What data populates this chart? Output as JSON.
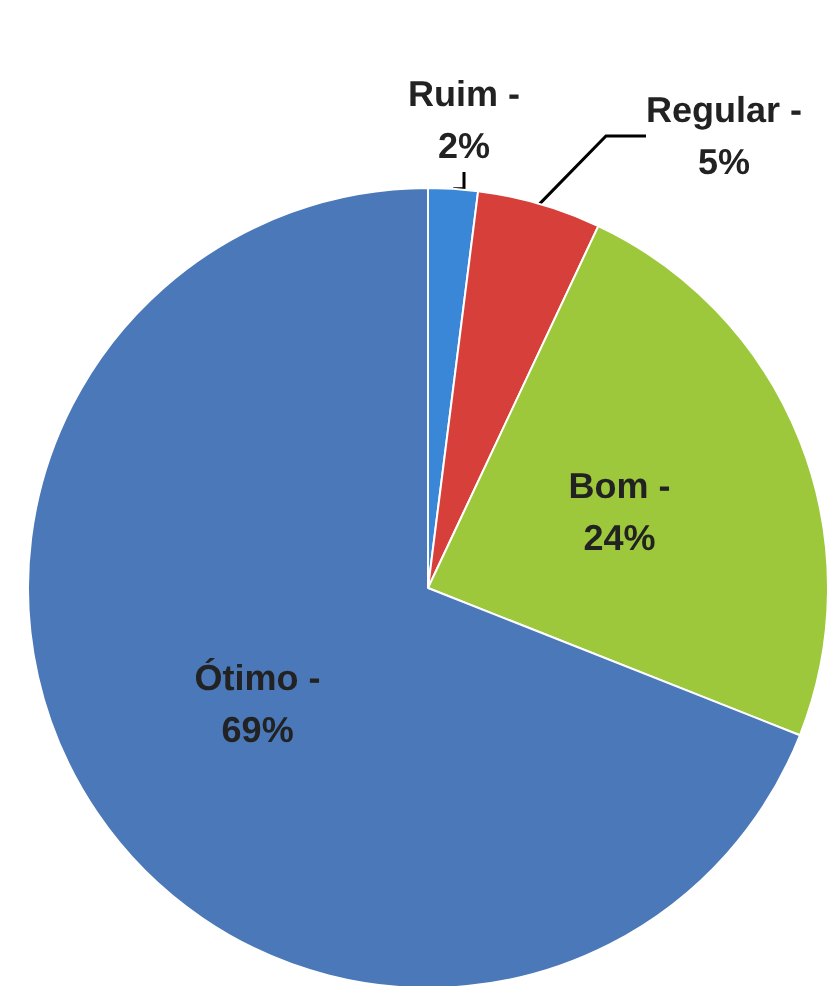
{
  "chart_data": {
    "type": "pie",
    "categories": [
      "Ruim -",
      "Regular -",
      "Bom -",
      "Ótimo -"
    ],
    "values": [
      2,
      5,
      24,
      69
    ],
    "colors": [
      "#3a87d8",
      "#d7403a",
      "#9dc83c",
      "#4a78b8"
    ],
    "value_labels": [
      "2%",
      "5%",
      "24%",
      "69%"
    ],
    "legend": false
  }
}
